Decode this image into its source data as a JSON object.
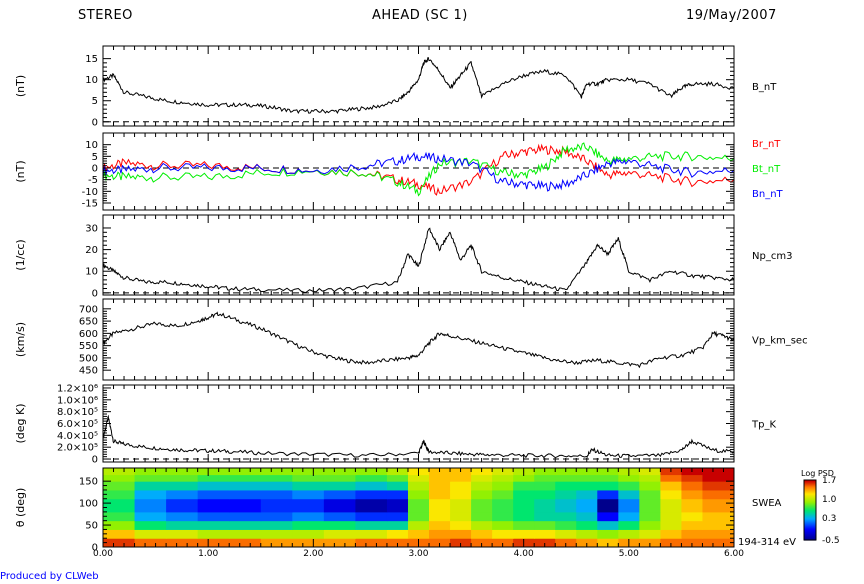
{
  "header": {
    "left": "STEREO",
    "center": "AHEAD (SC 1)",
    "right": "19/May/2007"
  },
  "footer": "Produced by CLWeb",
  "x_axis": {
    "range": [
      0,
      6
    ],
    "ticks": [
      "0.00",
      "1.00",
      "2.00",
      "3.00",
      "4.00",
      "5.00",
      "6.00"
    ]
  },
  "colorbar": {
    "title": "Log PSD",
    "ticks": [
      "1.7",
      "1.0",
      "0.3",
      "-0.5"
    ],
    "range": [
      -0.5,
      1.7
    ]
  },
  "colors": {
    "red": "#ff0000",
    "green": "#00ee00",
    "blue": "#0000ff",
    "black": "#000000"
  },
  "chart_data": [
    {
      "type": "line",
      "ylabel": "(nT)",
      "ylim": [
        -1,
        18
      ],
      "yticks": [
        0,
        5,
        10,
        15
      ],
      "zero_line": true,
      "series": [
        {
          "name": "B_nT",
          "color": "#000000",
          "x": [
            0,
            0.1,
            0.2,
            0.4,
            0.6,
            0.8,
            1.0,
            1.2,
            1.4,
            1.6,
            1.8,
            2.0,
            2.2,
            2.4,
            2.6,
            2.8,
            2.9,
            3.0,
            3.05,
            3.1,
            3.2,
            3.3,
            3.4,
            3.5,
            3.6,
            3.8,
            4.0,
            4.2,
            4.4,
            4.55,
            4.6,
            4.7,
            4.8,
            5.0,
            5.2,
            5.4,
            5.5,
            5.6,
            5.8,
            6.0
          ],
          "y": [
            10,
            11,
            7,
            6,
            5,
            4.5,
            4,
            4,
            4,
            3.5,
            2.5,
            2.5,
            2.5,
            3,
            3.5,
            5,
            7,
            10,
            14,
            15,
            12,
            8,
            11,
            14,
            6,
            9,
            11,
            12,
            11,
            6,
            9,
            9,
            10,
            10,
            9,
            6,
            8,
            9,
            9,
            8
          ]
        }
      ]
    },
    {
      "type": "line",
      "ylabel": "(nT)",
      "ylim": [
        -18,
        15
      ],
      "yticks": [
        -15,
        -10,
        -5,
        0,
        5,
        10
      ],
      "zero_line": true,
      "series": [
        {
          "name": "Br_nT",
          "color": "#ff0000",
          "x": [
            0,
            0.2,
            0.5,
            1.0,
            1.5,
            2.0,
            2.5,
            2.8,
            3.0,
            3.2,
            3.5,
            3.8,
            4.0,
            4.2,
            4.4,
            4.6,
            4.8,
            5.0,
            5.3,
            5.6,
            6.0
          ],
          "y": [
            0,
            2,
            1,
            1,
            0,
            -1,
            -2,
            -5,
            -7,
            -10,
            -6,
            5,
            7,
            8,
            7,
            3,
            -3,
            -2,
            -4,
            -6,
            -5
          ]
        },
        {
          "name": "Bt_nT",
          "color": "#00ee00",
          "x": [
            0,
            0.2,
            0.5,
            1.0,
            1.5,
            2.0,
            2.5,
            2.8,
            3.0,
            3.2,
            3.5,
            3.8,
            4.0,
            4.2,
            4.4,
            4.6,
            4.8,
            5.0,
            5.3,
            5.6,
            6.0
          ],
          "y": [
            -3,
            -4,
            -4,
            -4,
            -2,
            -1,
            -2,
            -6,
            -10,
            2,
            3,
            -2,
            -3,
            0,
            8,
            9,
            3,
            4,
            5,
            5,
            4
          ]
        },
        {
          "name": "Bn_nT",
          "color": "#0000ff",
          "x": [
            0,
            0.2,
            0.5,
            1.0,
            1.5,
            2.0,
            2.5,
            2.8,
            3.0,
            3.2,
            3.5,
            3.8,
            4.0,
            4.2,
            4.4,
            4.6,
            4.8,
            5.0,
            5.3,
            5.6,
            6.0
          ],
          "y": [
            -1,
            -1,
            0,
            0,
            0,
            -1,
            1,
            3,
            5,
            4,
            2,
            -6,
            -7,
            -8,
            -7,
            -3,
            2,
            3,
            0,
            -2,
            -1
          ]
        }
      ]
    },
    {
      "type": "line",
      "ylabel": "(1/cc)",
      "ylim": [
        -1,
        36
      ],
      "yticks": [
        0,
        10,
        20,
        30
      ],
      "zero_line": true,
      "series": [
        {
          "name": "Np_cm3",
          "color": "#000000",
          "x": [
            0,
            0.1,
            0.2,
            0.4,
            0.6,
            0.8,
            1.0,
            1.2,
            1.5,
            2.0,
            2.4,
            2.8,
            2.9,
            3.0,
            3.1,
            3.2,
            3.3,
            3.4,
            3.5,
            3.6,
            3.8,
            4.0,
            4.2,
            4.4,
            4.6,
            4.7,
            4.8,
            4.9,
            5.0,
            5.2,
            5.4,
            5.6,
            5.8,
            6.0
          ],
          "y": [
            13,
            10,
            7,
            5,
            5,
            4,
            3,
            2,
            1.5,
            1,
            2,
            5,
            18,
            12,
            30,
            20,
            28,
            15,
            22,
            10,
            7,
            5,
            3,
            1,
            14,
            22,
            18,
            25,
            10,
            6,
            10,
            8,
            7,
            6
          ]
        }
      ]
    },
    {
      "type": "line",
      "ylabel": "(km/s)",
      "ylim": [
        410,
        740
      ],
      "yticks": [
        450,
        500,
        550,
        600,
        650,
        700
      ],
      "zero_line": false,
      "series": [
        {
          "name": "Vp_km_sec",
          "color": "#000000",
          "x": [
            0,
            0.1,
            0.3,
            0.5,
            0.7,
            0.9,
            1.0,
            1.1,
            1.3,
            1.5,
            1.7,
            1.9,
            2.1,
            2.3,
            2.5,
            2.7,
            2.9,
            3.0,
            3.1,
            3.2,
            3.3,
            3.5,
            3.7,
            3.9,
            4.1,
            4.3,
            4.5,
            4.7,
            4.9,
            5.1,
            5.3,
            5.5,
            5.7,
            5.8,
            5.9,
            6.0
          ],
          "y": [
            560,
            600,
            620,
            640,
            630,
            650,
            665,
            680,
            650,
            620,
            580,
            540,
            510,
            490,
            480,
            490,
            500,
            510,
            560,
            600,
            590,
            570,
            550,
            530,
            510,
            490,
            480,
            490,
            480,
            470,
            500,
            510,
            540,
            600,
            590,
            570
          ]
        }
      ]
    },
    {
      "type": "line",
      "ylabel": "(deg K)",
      "ylim": [
        -50000,
        1250000
      ],
      "yticks": [
        0,
        200000,
        400000,
        600000,
        800000,
        1000000,
        1200000
      ],
      "yticklabels": [
        "0",
        "2.0×10⁵",
        "4.0×10⁵",
        "6.0×10⁵",
        "8.0×10⁵",
        "1.0×10⁶",
        "1.2×10⁶"
      ],
      "zero_line": true,
      "series": [
        {
          "name": "Tp_K",
          "color": "#000000",
          "x": [
            0,
            0.05,
            0.1,
            0.2,
            0.4,
            0.6,
            0.8,
            1.0,
            1.2,
            1.5,
            2.0,
            2.5,
            3.0,
            3.05,
            3.1,
            3.3,
            3.5,
            3.7,
            4.0,
            4.3,
            4.6,
            4.65,
            4.8,
            5.0,
            5.3,
            5.5,
            5.6,
            5.8,
            6.0
          ],
          "y": [
            350000,
            700000,
            300000,
            250000,
            200000,
            170000,
            150000,
            140000,
            130000,
            100000,
            80000,
            60000,
            100000,
            300000,
            120000,
            100000,
            80000,
            70000,
            60000,
            55000,
            50000,
            160000,
            60000,
            50000,
            60000,
            150000,
            300000,
            150000,
            120000
          ]
        }
      ]
    },
    {
      "type": "heatmap",
      "ylabel": "θ (deg)",
      "ylim": [
        0,
        180
      ],
      "yticks": [
        0,
        50,
        100,
        150
      ],
      "label": "SWEA",
      "sublabel": "194-314 eV",
      "colorscale": [
        -0.5,
        1.7
      ],
      "x_edges": [
        0,
        0.3,
        0.6,
        0.9,
        1.2,
        1.5,
        1.8,
        2.1,
        2.4,
        2.7,
        2.9,
        3.1,
        3.3,
        3.5,
        3.7,
        3.9,
        4.1,
        4.3,
        4.5,
        4.7,
        4.9,
        5.1,
        5.3,
        5.5,
        5.7,
        6.0
      ],
      "y_edges": [
        0,
        20,
        40,
        60,
        80,
        110,
        130,
        150,
        165,
        180
      ],
      "z": [
        [
          1.6,
          1.5,
          1.5,
          1.5,
          1.5,
          1.4,
          1.4,
          1.4,
          1.5,
          1.5,
          1.5,
          1.5,
          1.6,
          1.5,
          1.5,
          1.6,
          1.6,
          1.5,
          1.4,
          1.3,
          1.4,
          1.4,
          1.5,
          1.5,
          1.5
        ],
        [
          1.3,
          1.1,
          1.1,
          1.0,
          1.0,
          1.0,
          1.0,
          1.1,
          1.1,
          1.2,
          1.3,
          1.4,
          1.4,
          1.3,
          1.2,
          1.2,
          1.2,
          1.1,
          1.0,
          0.9,
          1.0,
          1.1,
          1.3,
          1.4,
          1.4
        ],
        [
          0.9,
          0.6,
          0.5,
          0.5,
          0.5,
          0.5,
          0.6,
          0.6,
          0.5,
          0.5,
          1.0,
          1.3,
          1.2,
          1.0,
          0.9,
          0.8,
          0.8,
          0.7,
          0.6,
          0.4,
          0.6,
          0.9,
          1.1,
          1.3,
          1.3
        ],
        [
          0.7,
          0.3,
          0.2,
          0.1,
          0.1,
          0.1,
          0.2,
          0.1,
          0.0,
          0.0,
          0.8,
          1.2,
          1.1,
          0.8,
          0.7,
          0.6,
          0.5,
          0.5,
          0.4,
          -0.1,
          0.3,
          0.8,
          1.1,
          1.2,
          1.3
        ],
        [
          0.6,
          0.2,
          0.0,
          -0.1,
          -0.1,
          0.0,
          0.0,
          -0.2,
          -0.4,
          -0.3,
          0.8,
          1.2,
          1.1,
          0.8,
          0.7,
          0.6,
          0.5,
          0.4,
          0.3,
          -0.5,
          0.2,
          0.8,
          1.1,
          1.3,
          1.4
        ],
        [
          0.7,
          0.3,
          0.2,
          0.1,
          0.1,
          0.1,
          0.2,
          0.1,
          0.0,
          0.0,
          0.9,
          1.3,
          1.2,
          0.9,
          0.8,
          0.6,
          0.6,
          0.5,
          0.4,
          0.0,
          0.4,
          0.8,
          1.2,
          1.4,
          1.5
        ],
        [
          0.8,
          0.5,
          0.5,
          0.4,
          0.4,
          0.4,
          0.5,
          0.5,
          0.4,
          0.5,
          1.0,
          1.3,
          1.2,
          1.0,
          0.9,
          0.7,
          0.7,
          0.6,
          0.6,
          0.6,
          0.7,
          0.9,
          1.3,
          1.5,
          1.6
        ],
        [
          0.9,
          0.8,
          0.8,
          0.7,
          0.7,
          0.7,
          0.8,
          0.8,
          0.7,
          0.8,
          1.1,
          1.3,
          1.3,
          1.1,
          1.0,
          0.9,
          0.8,
          0.8,
          0.8,
          0.8,
          0.9,
          1.0,
          1.5,
          1.6,
          1.7
        ],
        [
          1.0,
          0.9,
          0.9,
          0.9,
          0.9,
          0.9,
          0.9,
          0.9,
          0.9,
          1.0,
          1.2,
          1.3,
          1.3,
          1.2,
          1.1,
          1.0,
          0.9,
          0.9,
          0.9,
          0.9,
          1.0,
          1.1,
          1.6,
          1.7,
          1.7
        ]
      ]
    }
  ]
}
